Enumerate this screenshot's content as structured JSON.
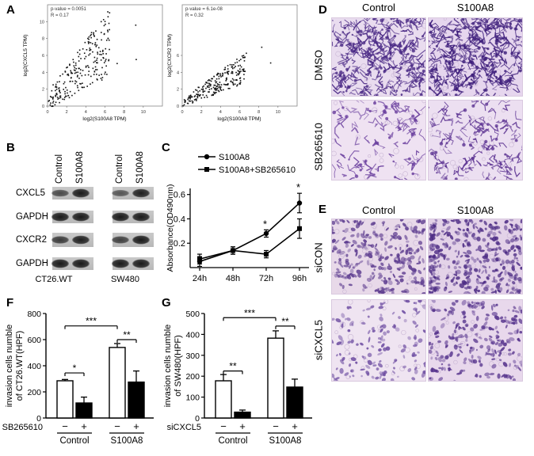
{
  "panel_letters": {
    "a": "A",
    "b": "B",
    "c": "C",
    "d": "D",
    "e": "E",
    "f": "F",
    "g": "G"
  },
  "panel_a": {
    "left": {
      "stats": [
        "p-value = 0.0051",
        "R = 0.17"
      ],
      "xlabel": "log2(S100A8 TPM)",
      "ylabel": "log2(CXCL5 TPM)",
      "xticks": [
        "0",
        "2",
        "4",
        "6",
        "8",
        "10"
      ],
      "yticks": [
        "0",
        "2",
        "4",
        "6",
        "8",
        "10"
      ]
    },
    "right": {
      "stats": [
        "p-value = 6.1e-08",
        "R = 0.32"
      ],
      "xlabel": "log2(S100A8 TPM)",
      "ylabel": "log2(CXCR2 TPM)",
      "xticks": [
        "0",
        "2",
        "4",
        "6",
        "8",
        "10"
      ],
      "yticks": [
        "0",
        "2",
        "4",
        "6"
      ]
    }
  },
  "panel_b": {
    "lane_labels_left": [
      "Control",
      "S100A8"
    ],
    "lane_labels_right": [
      "Control",
      "S100A8"
    ],
    "rows": [
      "CXCL5",
      "GAPDH",
      "CXCR2",
      "GAPDH"
    ],
    "cell_left": "CT26.WT",
    "cell_right": "SW480"
  },
  "panel_d": {
    "columns": [
      "Control",
      "S100A8"
    ],
    "rows": [
      "DMSO",
      "SB265610"
    ]
  },
  "panel_e": {
    "columns": [
      "Control",
      "S100A8"
    ],
    "rows": [
      "siCON",
      "siCXCL5"
    ]
  },
  "chart_data": [
    {
      "type": "line",
      "panel": "C",
      "ylabel": "Absorbance(OD490nm)",
      "categories": [
        "24h",
        "48h",
        "72h",
        "96h"
      ],
      "yticks": [
        "0.2",
        "0.4",
        "0.6"
      ],
      "ylim": [
        0,
        0.65
      ],
      "legend_placement": "top",
      "series": [
        {
          "name": "S100A8",
          "marker": "circle",
          "values": [
            0.05,
            0.14,
            0.28,
            0.53
          ],
          "errors": [
            0.04,
            0.03,
            0.03,
            0.08
          ]
        },
        {
          "name": "S100A8+SB265610",
          "marker": "square",
          "values": [
            0.07,
            0.14,
            0.11,
            0.32
          ],
          "errors": [
            0.04,
            0.03,
            0.03,
            0.08
          ]
        }
      ],
      "significance": [
        "*",
        "*"
      ]
    },
    {
      "type": "bar",
      "panel": "F",
      "ylabel": "invasion cells numble of CT26.WT(HPF)",
      "yticks": [
        "0",
        "200",
        "400",
        "600",
        "800"
      ],
      "ylim": [
        0,
        800
      ],
      "treatment_label": "SB265610",
      "treatment_signs": [
        "−",
        "+",
        "−",
        "+"
      ],
      "group_labels": [
        "Control",
        "S100A8"
      ],
      "values": [
        285,
        115,
        540,
        275
      ],
      "errors": [
        10,
        45,
        30,
        85
      ],
      "significance": [
        "*",
        "***",
        "**"
      ]
    },
    {
      "type": "bar",
      "panel": "G",
      "ylabel": "invasion cells numble of SW480(HPF)",
      "yticks": [
        "0",
        "100",
        "200",
        "300",
        "400",
        "500"
      ],
      "ylim": [
        0,
        500
      ],
      "treatment_label": "siCXCL5",
      "treatment_signs": [
        "−",
        "+",
        "−",
        "+"
      ],
      "group_labels": [
        "Control",
        "S100A8"
      ],
      "values": [
        178,
        28,
        382,
        148
      ],
      "errors": [
        30,
        10,
        35,
        38
      ],
      "significance": [
        "**",
        "***",
        "**"
      ]
    }
  ]
}
